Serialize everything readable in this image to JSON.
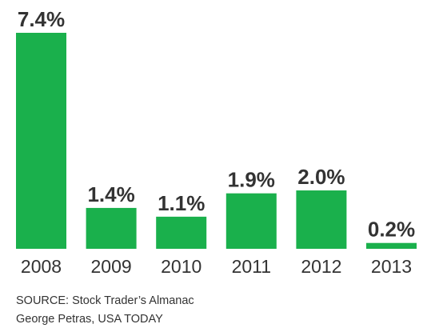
{
  "chart_data": {
    "type": "bar",
    "categories": [
      "2008",
      "2009",
      "2010",
      "2011",
      "2012",
      "2013"
    ],
    "values": [
      7.4,
      1.4,
      1.1,
      1.9,
      2.0,
      0.2
    ],
    "data_labels": [
      "7.4%",
      "1.4%",
      "1.1%",
      "1.9%",
      "2.0%",
      "0.2%"
    ],
    "title": "",
    "xlabel": "",
    "ylabel": "",
    "ylim": [
      0,
      7.4
    ],
    "grid": false,
    "bar_color": "#1ab04c"
  },
  "footer": {
    "source": "SOURCE:  Stock Trader’s Almanac",
    "credit": "George Petras, USA TODAY"
  }
}
